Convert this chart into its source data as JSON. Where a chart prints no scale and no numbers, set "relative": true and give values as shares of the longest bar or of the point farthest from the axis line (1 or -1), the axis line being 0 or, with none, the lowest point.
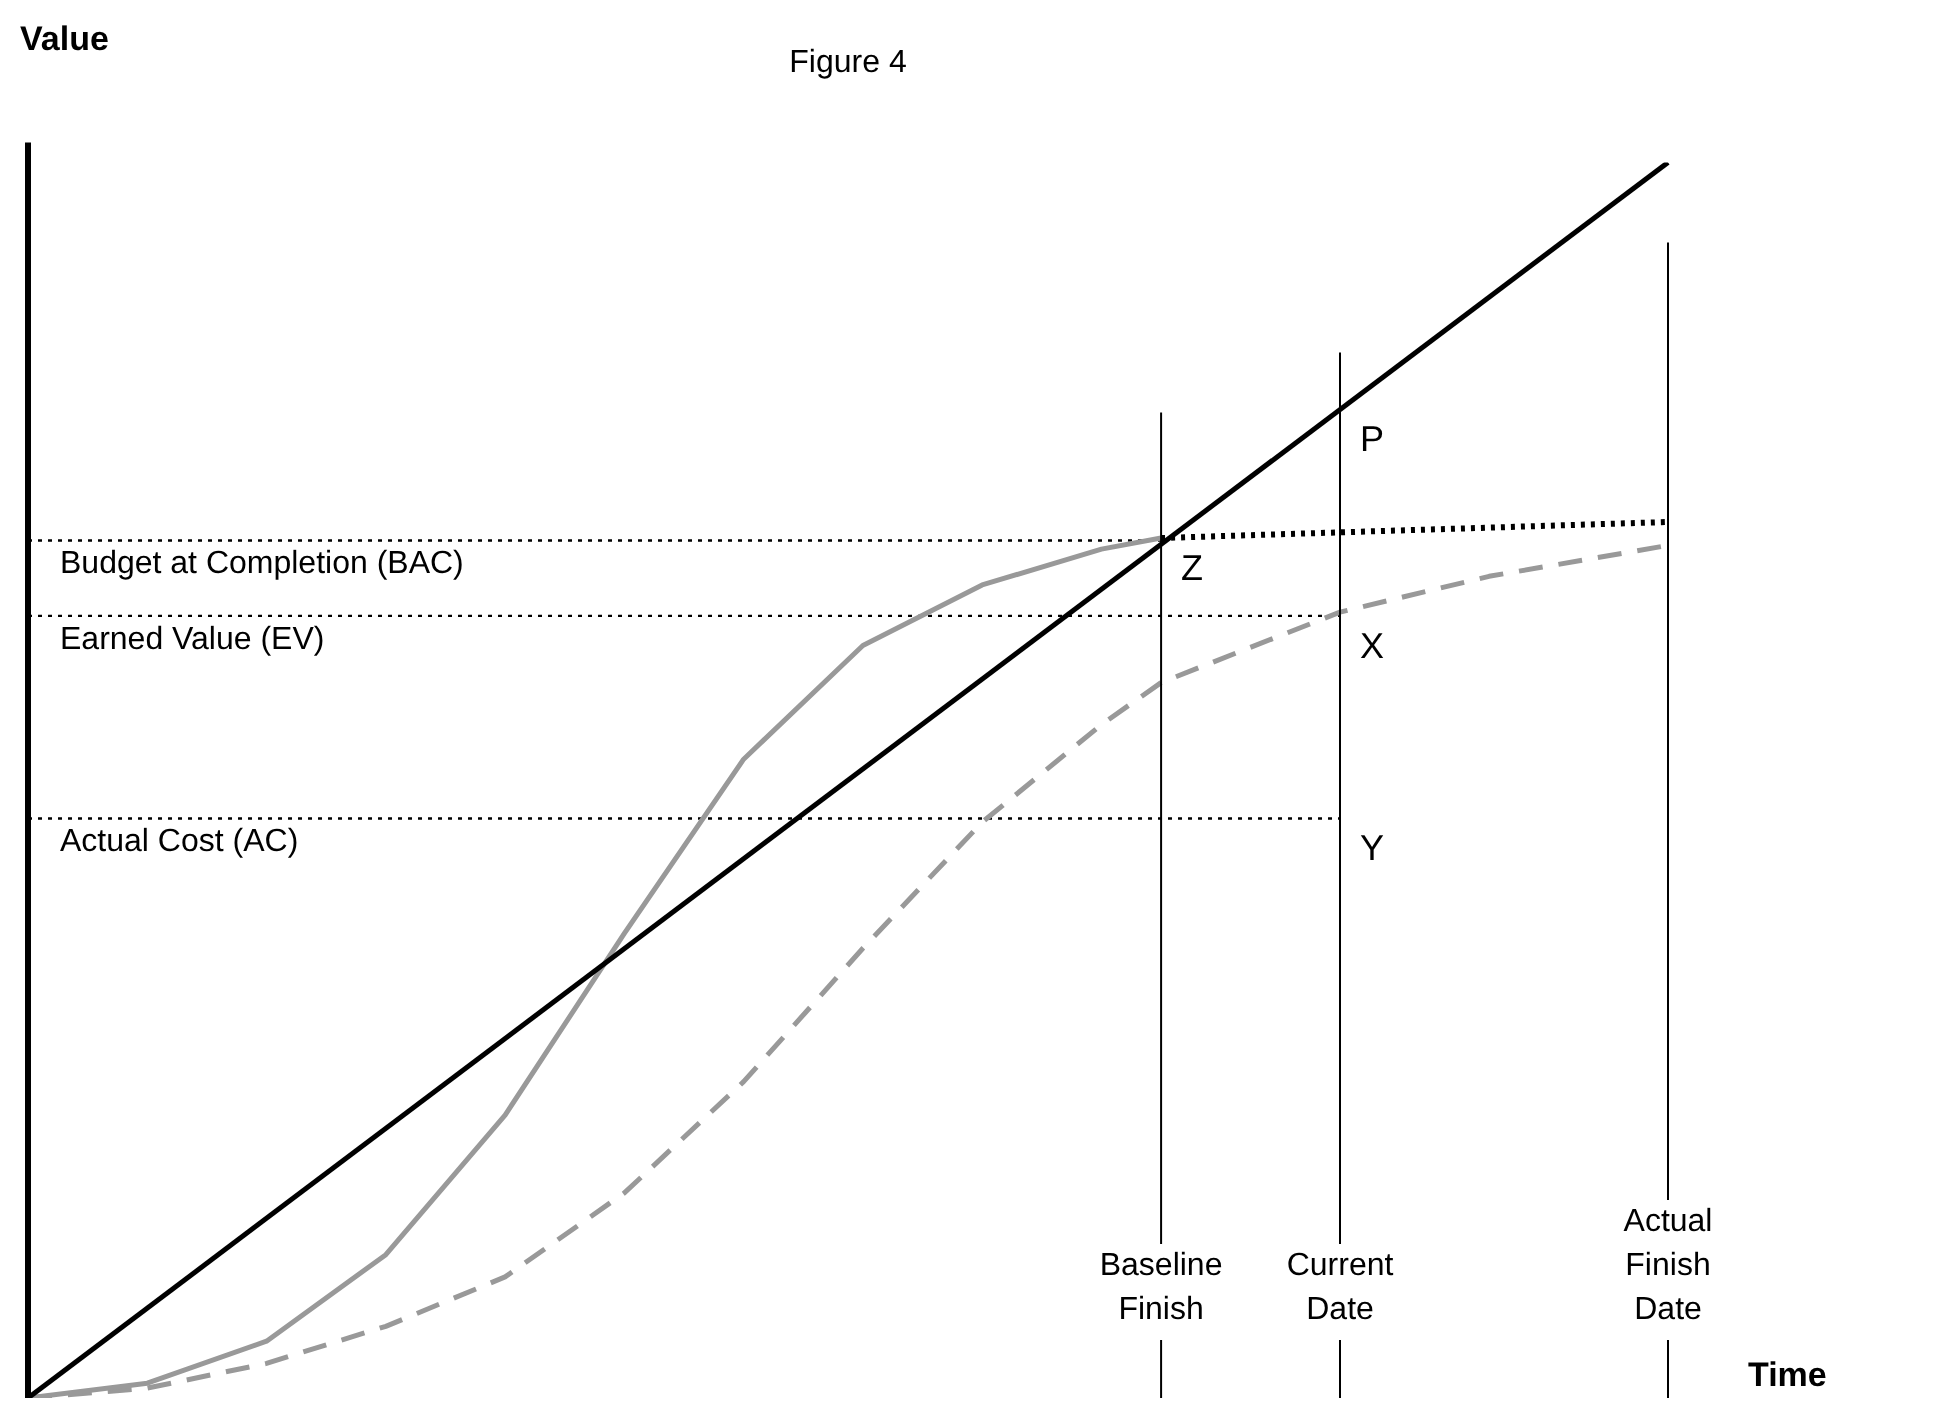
{
  "chart_data": {
    "type": "line",
    "title": "Figure 4",
    "xlabel": "Time",
    "ylabel": "Value",
    "relative": true,
    "tick_labels": "x",
    "marker": "none",
    "categories": [
      null,
      null,
      null,
      null,
      null,
      null,
      null,
      null,
      null,
      null,
      null,
      null,
      null,
      null,
      null,
      null,
      null,
      null,
      null,
      null,
      null,
      null,
      null,
      null,
      null,
      null,
      null,
      null,
      null,
      null,
      null,
      null,
      null,
      null,
      null,
      null,
      null,
      null,
      "Baseline\nFinish",
      null,
      null,
      null,
      null,
      null,
      "Current\nDate",
      null,
      null,
      null,
      null,
      null,
      null,
      null,
      null,
      null,
      null,
      "Actual\nFinish\nDate"
    ],
    "series": [
      {
        "color": "#000000",
        "line_style": "solid",
        "values": [
          0,
          null,
          null,
          null,
          null,
          null,
          null,
          null,
          null,
          null,
          null,
          null,
          null,
          null,
          null,
          null,
          null,
          null,
          null,
          null,
          null,
          null,
          null,
          null,
          null,
          null,
          null,
          null,
          null,
          null,
          null,
          null,
          null,
          null,
          null,
          null,
          null,
          null,
          null,
          null,
          null,
          null,
          null,
          null,
          null,
          null,
          null,
          null,
          null,
          null,
          null,
          null,
          null,
          null,
          null,
          1
        ]
      },
      {
        "color": "#999999",
        "line_style": "solid",
        "values": [
          0,
          null,
          null,
          null,
          0.012,
          null,
          null,
          null,
          0.046,
          null,
          null,
          null,
          0.116,
          null,
          null,
          null,
          0.229,
          null,
          null,
          null,
          0.376,
          null,
          null,
          null,
          0.517,
          null,
          null,
          null,
          0.609,
          null,
          null,
          null,
          0.658,
          null,
          null,
          null,
          0.687,
          null,
          0.696,
          null,
          null,
          null,
          null,
          null,
          null,
          null,
          null,
          null,
          null,
          null,
          null,
          null,
          null,
          null,
          null,
          null
        ]
      },
      {
        "color": "#999999",
        "line_style": "dashed",
        "values": [
          0,
          null,
          null,
          null,
          0.008,
          null,
          null,
          null,
          0.028,
          null,
          null,
          null,
          0.058,
          null,
          null,
          null,
          0.098,
          null,
          null,
          null,
          0.166,
          null,
          null,
          null,
          0.256,
          null,
          null,
          null,
          0.364,
          null,
          null,
          null,
          0.466,
          null,
          null,
          null,
          0.545,
          null,
          0.579,
          null,
          null,
          null,
          null,
          null,
          0.636,
          null,
          null,
          null,
          null,
          0.665,
          null,
          null,
          null,
          null,
          null,
          0.69
        ]
      },
      {
        "color": "#000000",
        "line_style": "dotted",
        "values": [
          null,
          null,
          null,
          null,
          null,
          null,
          null,
          null,
          null,
          null,
          null,
          null,
          null,
          null,
          null,
          null,
          null,
          null,
          null,
          null,
          null,
          null,
          null,
          null,
          null,
          null,
          null,
          null,
          null,
          null,
          null,
          null,
          null,
          null,
          null,
          null,
          null,
          null,
          0.696,
          null,
          null,
          null,
          null,
          null,
          null,
          null,
          null,
          null,
          null,
          null,
          null,
          null,
          null,
          null,
          null,
          0.709
        ]
      },
      {
        "name": "Budget at Completion (BAC)",
        "color": "#000000",
        "line_style": "dotted",
        "values": [
          0.694,
          null,
          null,
          null,
          null,
          null,
          null,
          null,
          null,
          null,
          null,
          null,
          null,
          null,
          null,
          null,
          null,
          null,
          null,
          null,
          null,
          null,
          null,
          null,
          null,
          null,
          null,
          null,
          null,
          null,
          null,
          null,
          null,
          null,
          null,
          null,
          null,
          null,
          0.694,
          null,
          null,
          null,
          null,
          null,
          null,
          null,
          null,
          null,
          null,
          null,
          null,
          null,
          null,
          null,
          null,
          null
        ]
      },
      {
        "name": "Earned Value (EV)",
        "color": "#000000",
        "line_style": "dotted",
        "values": [
          0.633,
          null,
          null,
          null,
          null,
          null,
          null,
          null,
          null,
          null,
          null,
          null,
          null,
          null,
          null,
          null,
          null,
          null,
          null,
          null,
          null,
          null,
          null,
          null,
          null,
          null,
          null,
          null,
          null,
          null,
          null,
          null,
          null,
          null,
          null,
          null,
          null,
          null,
          null,
          null,
          null,
          null,
          null,
          null,
          0.633,
          null,
          null,
          null,
          null,
          null,
          null,
          null,
          null,
          null,
          null,
          null
        ]
      },
      {
        "name": "Actual Cost (AC)",
        "color": "#000000",
        "line_style": "dotted",
        "values": [
          0.469,
          null,
          null,
          null,
          null,
          null,
          null,
          null,
          null,
          null,
          null,
          null,
          null,
          null,
          null,
          null,
          null,
          null,
          null,
          null,
          null,
          null,
          null,
          null,
          null,
          null,
          null,
          null,
          null,
          null,
          null,
          null,
          null,
          null,
          null,
          null,
          null,
          null,
          null,
          null,
          null,
          null,
          null,
          null,
          0.469,
          null,
          null,
          null,
          null,
          null,
          null,
          null,
          null,
          null,
          null,
          null
        ]
      }
    ],
    "ref_lines": [
      {
        "axis": "x",
        "value": "Baseline\nFinish",
        "color": "#000000"
      },
      {
        "axis": "x",
        "value": "Current\nDate",
        "color": "#000000"
      },
      {
        "axis": "x",
        "value": "Actual\nFinish\nDate",
        "color": "#000000"
      }
    ],
    "annotations": [
      {
        "text": "Z",
        "x": "Baseline\nFinish",
        "y": 0.696
      },
      {
        "text": "P",
        "x": "Current\nDate",
        "y": 0.8
      },
      {
        "text": "X",
        "x": "Current\nDate",
        "y": 0.633
      },
      {
        "text": "Y",
        "x": "Current\nDate",
        "y": 0.469
      }
    ]
  }
}
